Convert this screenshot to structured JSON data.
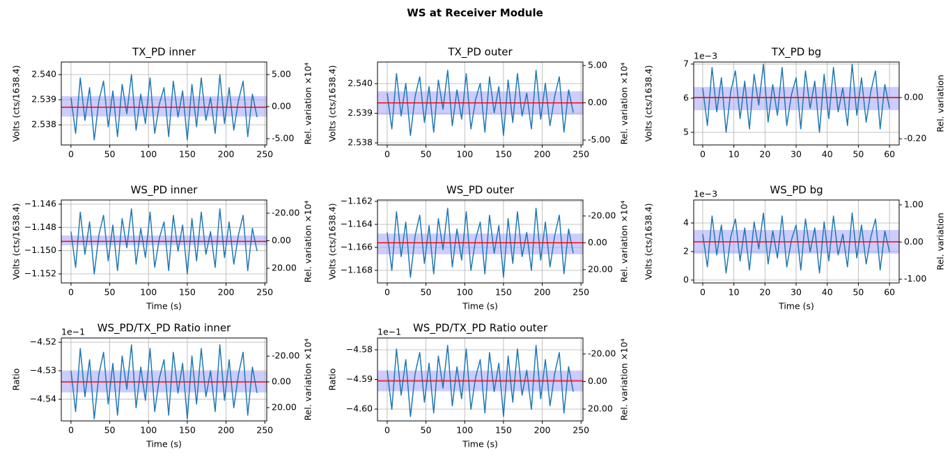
{
  "title": "WS at Receiver Module",
  "chart_data": [
    {
      "type": "line",
      "title": "TX_PD inner",
      "ylabel": "Volts (cts/1638.4)",
      "y2label": "Rel. variation ×10⁴",
      "grid": true,
      "color": "#1f77b4",
      "xlim": [
        -12.5,
        252.5
      ],
      "xticks": [
        0,
        50,
        100,
        150,
        200,
        250
      ],
      "ylim": [
        2.5372,
        2.5405
      ],
      "yticks": [
        2.538,
        2.539,
        {
          "value": 2.54,
          "label": "2.540"
        }
      ],
      "y2lim": [
        -5.98,
        6.96
      ],
      "y2ticks": [
        {
          "value": -5,
          "label": "-5.00"
        },
        {
          "value": 0,
          "label": "0.00"
        },
        {
          "value": 5,
          "label": "5.00"
        }
      ],
      "mean": 2.5387,
      "mean_color": "#ff0000",
      "band": [
        2.53833,
        2.53914
      ],
      "band_color": "#0000ff",
      "x": [
        0,
        6,
        12,
        18,
        24,
        30,
        36,
        42,
        48,
        54,
        60,
        66,
        72,
        78,
        84,
        90,
        96,
        102,
        108,
        114,
        120,
        126,
        132,
        138,
        144,
        150,
        156,
        162,
        168,
        174,
        180,
        186,
        192,
        198,
        204,
        210,
        216,
        222,
        228,
        234,
        240
      ],
      "values": [
        2.53909,
        2.53766,
        2.53987,
        2.53818,
        2.53948,
        2.5374,
        2.53896,
        2.53974,
        2.53792,
        2.53935,
        2.53753,
        2.53961,
        2.53844,
        2.54,
        2.53779,
        2.53922,
        2.53805,
        2.53987,
        2.53766,
        2.53883,
        2.53948,
        2.53753,
        2.53974,
        2.53831,
        2.53935,
        2.5374,
        2.53961,
        2.53792,
        2.53987,
        2.53818,
        2.53909,
        2.53766,
        2.54,
        2.53805,
        2.53948,
        2.53779,
        2.53896,
        2.53974,
        2.53753,
        2.53922,
        2.53831
      ]
    },
    {
      "type": "line",
      "title": "TX_PD outer",
      "ylabel": "Volts (cts/1638.4)",
      "y2label": "Rel. variation ×10⁴",
      "grid": true,
      "color": "#1f77b4",
      "xlim": [
        -12.5,
        252.5
      ],
      "xticks": [
        0,
        50,
        100,
        150,
        200,
        250
      ],
      "ylim": [
        2.53793,
        2.54073
      ],
      "yticks": [
        2.538,
        2.539,
        {
          "value": 2.54,
          "label": "2.540"
        }
      ],
      "y2lim": [
        -5.65,
        5.47
      ],
      "y2ticks": [
        {
          "value": -5,
          "label": "-5.00"
        },
        {
          "value": 0,
          "label": "0.00"
        },
        {
          "value": 5,
          "label": "5.00"
        }
      ],
      "mean": 2.53935,
      "mean_color": "#ff0000",
      "band": [
        2.53895,
        2.53974
      ],
      "band_color": "#0000ff",
      "x": [
        0,
        6,
        12,
        18,
        24,
        30,
        36,
        42,
        48,
        54,
        60,
        66,
        72,
        78,
        84,
        90,
        96,
        102,
        108,
        114,
        120,
        126,
        132,
        138,
        144,
        150,
        156,
        162,
        168,
        174,
        180,
        186,
        192,
        198,
        204,
        210,
        216,
        222,
        228,
        234,
        240
      ],
      "values": [
        2.53968,
        2.53847,
        2.54034,
        2.53891,
        2.54001,
        2.53825,
        2.53957,
        2.54023,
        2.53869,
        2.5399,
        2.53836,
        2.54012,
        2.53913,
        2.54045,
        2.53858,
        2.53979,
        2.5388,
        2.54034,
        2.53847,
        2.53946,
        2.54001,
        2.53836,
        2.54023,
        2.53902,
        2.5399,
        2.53825,
        2.54012,
        2.53869,
        2.54034,
        2.53891,
        2.53968,
        2.53847,
        2.54045,
        2.5388,
        2.54001,
        2.53858,
        2.53957,
        2.54023,
        2.53836,
        2.53979,
        2.53902
      ]
    },
    {
      "type": "line",
      "title": "TX_PD bg",
      "ylabel": "Volts (cts/1638.4)",
      "y2label": "Rel. variation",
      "offset_text": "1e−3",
      "grid": true,
      "color": "#1f77b4",
      "xlim": [
        -2.9,
        63.1
      ],
      "xticks": [
        0,
        10,
        20,
        30,
        40,
        50,
        60
      ],
      "ylim": [
        4.63,
        7.06
      ],
      "yticks": [
        5,
        6,
        7
      ],
      "y2lim": [
        -0.23,
        0.173
      ],
      "y2ticks": [
        {
          "value": -0.2,
          "label": "-0.20"
        },
        {
          "value": 0,
          "label": "0.00"
        }
      ],
      "mean": 6.02,
      "mean_color": "#ff0000",
      "band": [
        5.65,
        6.33
      ],
      "band_color": "#0000ff",
      "x": [
        0,
        1.5,
        3,
        4.5,
        6,
        7.5,
        9,
        10.5,
        12,
        13.5,
        15,
        16.5,
        18,
        19.5,
        21,
        22.5,
        24,
        25.5,
        27,
        28.5,
        30,
        31.5,
        33,
        34.5,
        36,
        37.5,
        39,
        40.5,
        42,
        43.5,
        45,
        46.5,
        48,
        49.5,
        51,
        52.5,
        54,
        55.5,
        57,
        58.5,
        60
      ],
      "values": [
        6.3,
        5.2,
        6.9,
        5.6,
        6.6,
        5.0,
        6.2,
        6.8,
        5.4,
        6.5,
        5.1,
        6.7,
        5.8,
        7.0,
        5.3,
        6.4,
        5.5,
        6.9,
        5.2,
        6.1,
        6.6,
        5.1,
        6.8,
        5.7,
        6.5,
        5.0,
        6.7,
        5.4,
        6.9,
        5.6,
        6.3,
        5.2,
        7.0,
        5.5,
        6.6,
        5.3,
        6.2,
        6.8,
        5.1,
        6.4,
        5.7
      ]
    },
    {
      "type": "line",
      "title": "WS_PD inner",
      "ylabel": "Volts (cts/1638.4)",
      "y2label": "Rel. variation ×10⁴",
      "xlabel": "Time (s)",
      "grid": true,
      "color": "#1f77b4",
      "xlim": [
        -12.5,
        252.5
      ],
      "xticks": [
        0,
        50,
        100,
        150,
        200,
        250
      ],
      "ylim": [
        -1.15278,
        -1.14564
      ],
      "yticks": [
        {
          "value": -1.152,
          "label": "−1.152"
        },
        {
          "value": -1.15,
          "label": "−1.150"
        },
        {
          "value": -1.148,
          "label": "−1.148"
        },
        {
          "value": -1.146,
          "label": "−1.146"
        }
      ],
      "y2lim": [
        30.6,
        -29.6
      ],
      "y2ticks": [
        {
          "value": 20,
          "label": "20.00"
        },
        {
          "value": 0,
          "label": "0.00"
        },
        {
          "value": -20,
          "label": "-20.00"
        }
      ],
      "mean": -1.1492,
      "mean_color": "#ff0000",
      "band": [
        -1.14954,
        -1.1487
      ],
      "band_color": "#0000ff",
      "x": [
        0,
        6,
        12,
        18,
        24,
        30,
        36,
        42,
        48,
        54,
        60,
        66,
        72,
        78,
        84,
        90,
        96,
        102,
        108,
        114,
        120,
        126,
        132,
        138,
        144,
        150,
        156,
        162,
        168,
        174,
        180,
        186,
        192,
        198,
        204,
        210,
        216,
        222,
        228,
        234,
        240
      ],
      "values": [
        -1.14836,
        -1.15144,
        -1.14668,
        -1.15032,
        -1.14752,
        -1.152,
        -1.14864,
        -1.14696,
        -1.15088,
        -1.1478,
        -1.15172,
        -1.14724,
        -1.14976,
        -1.1464,
        -1.15116,
        -1.14808,
        -1.1506,
        -1.14668,
        -1.15144,
        -1.14892,
        -1.14752,
        -1.15172,
        -1.14696,
        -1.15004,
        -1.1478,
        -1.152,
        -1.14724,
        -1.15088,
        -1.14668,
        -1.15032,
        -1.14836,
        -1.15144,
        -1.1464,
        -1.1506,
        -1.14752,
        -1.15116,
        -1.14864,
        -1.14696,
        -1.15172,
        -1.14808,
        -1.15004
      ]
    },
    {
      "type": "line",
      "title": "WS_PD outer",
      "ylabel": "Volts (cts/1638.4)",
      "y2label": "Rel. variation ×10⁴",
      "xlabel": "Time (s)",
      "grid": true,
      "color": "#1f77b4",
      "xlim": [
        -12.5,
        252.5
      ],
      "xticks": [
        0,
        50,
        100,
        150,
        200,
        250
      ],
      "ylim": [
        -1.16909,
        -1.16188
      ],
      "yticks": [
        {
          "value": -1.168,
          "label": "−1.168"
        },
        {
          "value": -1.166,
          "label": "−1.166"
        },
        {
          "value": -1.164,
          "label": "−1.164"
        },
        {
          "value": -1.162,
          "label": "−1.162"
        }
      ],
      "y2lim": [
        29.9,
        -31.9
      ],
      "y2ticks": [
        {
          "value": 20,
          "label": "20.00"
        },
        {
          "value": 0,
          "label": "0.00"
        },
        {
          "value": -20,
          "label": "-20.00"
        }
      ],
      "mean": -1.1656,
      "mean_color": "#ff0000",
      "band": [
        -1.1666,
        -1.1648
      ],
      "band_color": "#0000ff",
      "x": [
        0,
        6,
        12,
        18,
        24,
        30,
        36,
        42,
        48,
        54,
        60,
        66,
        72,
        78,
        84,
        90,
        96,
        102,
        108,
        114,
        120,
        126,
        132,
        138,
        144,
        150,
        156,
        162,
        168,
        174,
        180,
        186,
        192,
        198,
        204,
        210,
        216,
        222,
        228,
        234,
        240
      ],
      "values": [
        -1.1647,
        -1.168,
        -1.1629,
        -1.1668,
        -1.1638,
        -1.1686,
        -1.165,
        -1.1632,
        -1.1674,
        -1.1641,
        -1.1683,
        -1.1635,
        -1.1662,
        -1.1626,
        -1.1677,
        -1.1644,
        -1.1671,
        -1.1629,
        -1.168,
        -1.1653,
        -1.1638,
        -1.1683,
        -1.1632,
        -1.1665,
        -1.1641,
        -1.1686,
        -1.1635,
        -1.1674,
        -1.1629,
        -1.1668,
        -1.1647,
        -1.168,
        -1.1626,
        -1.1671,
        -1.1638,
        -1.1677,
        -1.165,
        -1.1632,
        -1.1683,
        -1.1644,
        -1.1665
      ]
    },
    {
      "type": "line",
      "title": "WS_PD bg",
      "ylabel": "Volts (cts/1638.4)",
      "y2label": "Rel. variation",
      "xlabel": "Time (s)",
      "offset_text": "1e−3",
      "grid": true,
      "color": "#1f77b4",
      "xlim": [
        -2.9,
        63.1
      ],
      "xticks": [
        0,
        10,
        20,
        30,
        40,
        50,
        60
      ],
      "ylim": [
        -0.2,
        5.61
      ],
      "yticks": [
        0,
        2,
        4
      ],
      "y2lim": [
        -1.1,
        1.13
      ],
      "y2ticks": [
        {
          "value": -1,
          "label": "-1.00"
        },
        {
          "value": 0,
          "label": "0.00"
        },
        {
          "value": 1,
          "label": "1.00"
        }
      ],
      "mean": 2.68,
      "mean_color": "#ff0000",
      "band": [
        1.85,
        3.51
      ],
      "band_color": "#0000ff",
      "x": [
        0,
        1.5,
        3,
        4.5,
        6,
        7.5,
        9,
        10.5,
        12,
        13.5,
        15,
        16.5,
        18,
        19.5,
        21,
        22.5,
        24,
        25.5,
        27,
        28.5,
        30,
        31.5,
        33,
        34.5,
        36,
        37.5,
        39,
        40.5,
        42,
        43.5,
        45,
        46.5,
        48,
        49.5,
        51,
        52.5,
        54,
        55.5,
        57,
        58.5,
        60
      ],
      "values": [
        3.23,
        0.92,
        4.49,
        1.76,
        3.86,
        0.5,
        3.02,
        4.28,
        1.34,
        3.65,
        0.71,
        4.07,
        2.18,
        4.7,
        1.13,
        3.44,
        1.55,
        4.49,
        0.92,
        2.81,
        3.86,
        0.71,
        4.28,
        1.97,
        3.65,
        0.5,
        4.07,
        1.34,
        4.49,
        1.76,
        3.23,
        0.92,
        4.7,
        1.55,
        3.86,
        1.13,
        3.02,
        4.28,
        0.71,
        3.44,
        1.97
      ]
    },
    {
      "type": "line",
      "title": "WS_PD/TX_PD Ratio inner",
      "ylabel": "Ratio",
      "y2label": "Rel. variation ×10⁴",
      "xlabel": "Time (s)",
      "offset_text": "1e−1",
      "grid": true,
      "color": "#1f77b4",
      "xlim": [
        -12.5,
        252.5
      ],
      "xticks": [
        0,
        50,
        100,
        150,
        200,
        250
      ],
      "ylim": [
        -4.5476,
        -4.5185
      ],
      "yticks": [
        {
          "value": -4.54,
          "label": "−4.54"
        },
        {
          "value": -4.53,
          "label": "−4.53"
        },
        {
          "value": -4.52,
          "label": "−4.52"
        }
      ],
      "y2lim": [
        30.3,
        -34.1
      ],
      "y2ticks": [
        {
          "value": 20,
          "label": "20.00"
        },
        {
          "value": 0,
          "label": "0.00"
        },
        {
          "value": -20,
          "label": "-20.00"
        }
      ],
      "mean": -4.5339,
      "mean_color": "#ff0000",
      "band": [
        -4.5376,
        -4.5302
      ],
      "band_color": "#0000ff",
      "x": [
        0,
        6,
        12,
        18,
        24,
        30,
        36,
        42,
        48,
        54,
        60,
        66,
        72,
        78,
        84,
        90,
        96,
        102,
        108,
        114,
        120,
        126,
        132,
        138,
        144,
        150,
        156,
        162,
        168,
        174,
        180,
        186,
        192,
        198,
        204,
        210,
        216,
        222,
        228,
        234,
        240
      ],
      "values": [
        -4.53,
        -4.5443,
        -4.5222,
        -4.5391,
        -4.5261,
        -4.5469,
        -4.5313,
        -4.5235,
        -4.5417,
        -4.5274,
        -4.5456,
        -4.5248,
        -4.5365,
        -4.5209,
        -4.543,
        -4.5287,
        -4.5404,
        -4.5222,
        -4.5443,
        -4.5326,
        -4.5261,
        -4.5456,
        -4.5235,
        -4.5378,
        -4.5274,
        -4.5469,
        -4.5248,
        -4.5417,
        -4.5222,
        -4.5391,
        -4.53,
        -4.5443,
        -4.5209,
        -4.5404,
        -4.5261,
        -4.543,
        -4.5313,
        -4.5235,
        -4.5456,
        -4.5287,
        -4.5378
      ]
    },
    {
      "type": "line",
      "title": "WS_PD/TX_PD Ratio outer",
      "ylabel": "Ratio",
      "y2label": "Rel. variation ×10⁴",
      "xlabel": "Time (s)",
      "offset_text": "1e−1",
      "grid": true,
      "color": "#1f77b4",
      "xlim": [
        -12.5,
        252.5
      ],
      "xticks": [
        0,
        50,
        100,
        150,
        200,
        250
      ],
      "ylim": [
        -4.604,
        -4.576
      ],
      "yticks": [
        {
          "value": -4.6,
          "label": "−4.60"
        },
        {
          "value": -4.59,
          "label": "−4.59"
        },
        {
          "value": -4.58,
          "label": "−4.58"
        }
      ],
      "y2lim": [
        28.6,
        -31.6
      ],
      "y2ticks": [
        {
          "value": 20,
          "label": "20.00"
        },
        {
          "value": 0,
          "label": "0.00"
        },
        {
          "value": -20,
          "label": "-20.00"
        }
      ],
      "mean": -4.5905,
      "mean_color": "#ff0000",
      "band": [
        -4.594,
        -4.587
      ],
      "band_color": "#0000ff",
      "x": [
        0,
        6,
        12,
        18,
        24,
        30,
        36,
        42,
        48,
        54,
        60,
        66,
        72,
        78,
        84,
        90,
        96,
        102,
        108,
        114,
        120,
        126,
        132,
        138,
        144,
        150,
        156,
        162,
        168,
        174,
        180,
        186,
        192,
        198,
        204,
        210,
        216,
        222,
        228,
        234,
        240
      ],
      "values": [
        -4.5869,
        -4.6001,
        -4.5797,
        -4.5953,
        -4.5833,
        -4.6025,
        -4.5881,
        -4.5809,
        -4.5977,
        -4.5845,
        -4.6013,
        -4.5821,
        -4.5929,
        -4.5785,
        -4.5989,
        -4.5857,
        -4.5965,
        -4.5797,
        -4.6001,
        -4.5893,
        -4.5833,
        -4.6013,
        -4.5809,
        -4.5941,
        -4.5845,
        -4.6025,
        -4.5821,
        -4.5977,
        -4.5797,
        -4.5953,
        -4.5869,
        -4.6001,
        -4.5785,
        -4.5965,
        -4.5833,
        -4.5989,
        -4.5881,
        -4.5809,
        -4.6013,
        -4.5857,
        -4.5941
      ]
    }
  ]
}
